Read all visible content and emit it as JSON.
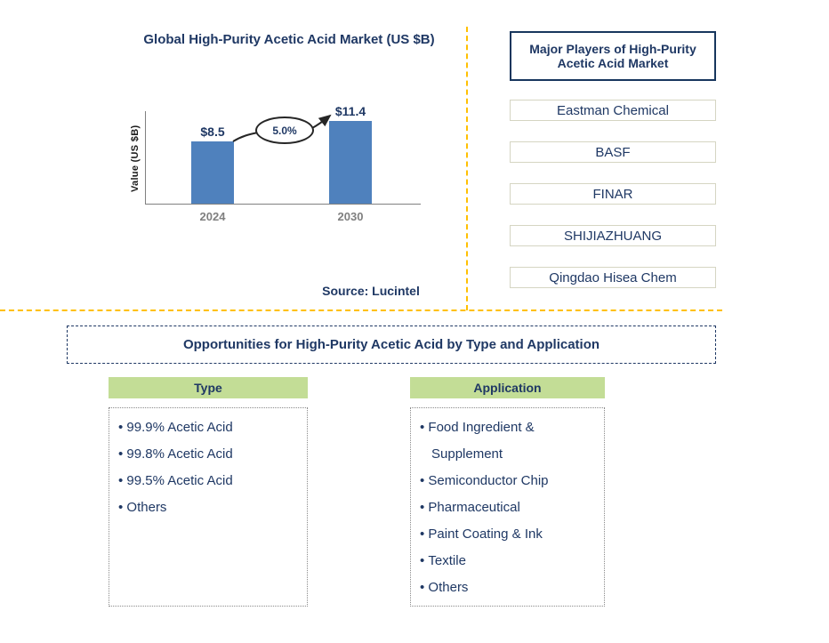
{
  "chart": {
    "title": "Global High-Purity Acetic Acid Market (US $B)",
    "ylabel": "Value (US $B)",
    "source": "Source: Lucintel",
    "cagr": "5.0%",
    "bars": [
      {
        "year": "2024",
        "label": "$8.5"
      },
      {
        "year": "2030",
        "label": "$11.4"
      }
    ]
  },
  "chart_data": {
    "type": "bar",
    "categories": [
      "2024",
      "2030"
    ],
    "values": [
      8.5,
      11.4
    ],
    "title": "Global High-Purity Acetic Acid Market (US $B)",
    "xlabel": "",
    "ylabel": "Value (US $B)",
    "ylim": [
      0,
      13
    ],
    "annotations": [
      "5.0%"
    ],
    "bar_color": "#4F81BD",
    "source": "Source: Lucintel"
  },
  "players": {
    "title": "Major Players of High-Purity Acetic Acid Market",
    "items": [
      "Eastman Chemical",
      "BASF",
      "FINAR",
      "SHIJIAZHUANG",
      "Qingdao Hisea Chem"
    ]
  },
  "opportunities": {
    "title": "Opportunities for High-Purity Acetic Acid by Type and Application",
    "columns": [
      {
        "header": "Type",
        "items": [
          "99.9% Acetic Acid",
          "99.8% Acetic Acid",
          "99.5% Acetic Acid",
          "Others"
        ]
      },
      {
        "header": "Application",
        "items": [
          "Food Ingredient & Supplement",
          "Semiconductor Chip",
          "Pharmaceutical",
          "Paint Coating & Ink",
          "Textile",
          "Others"
        ]
      }
    ]
  },
  "colors": {
    "navy_text": "#1F3864",
    "bar_blue": "#4F81BD",
    "header_green": "#C3DD96",
    "divider_orange": "#FFC000",
    "tick_gray": "#7F7F7F"
  }
}
